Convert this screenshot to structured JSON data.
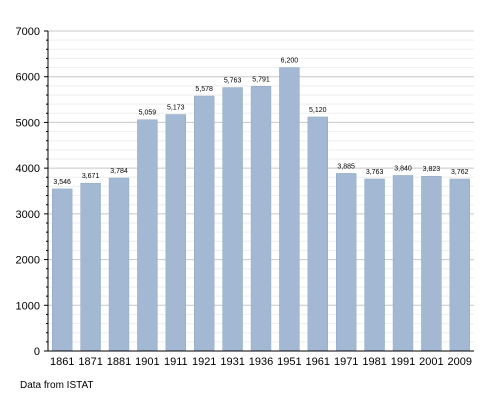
{
  "source_note": "Data from ISTAT",
  "colors": {
    "bar": "#a3b9d3",
    "bar_edge": "#8ea7c4",
    "grid_major": "#c8c8c8",
    "grid_minor": "#eeeeee",
    "axis": "#000000"
  },
  "chart_data": {
    "type": "bar",
    "categories": [
      "1861",
      "1871",
      "1881",
      "1901",
      "1911",
      "1921",
      "1931",
      "1936",
      "1951",
      "1961",
      "1971",
      "1981",
      "1991",
      "2001",
      "2009"
    ],
    "values": [
      3546,
      3671,
      3784,
      5059,
      5173,
      5578,
      5763,
      5791,
      6200,
      5120,
      3885,
      3763,
      3840,
      3823,
      3762
    ],
    "value_labels": [
      "3,546",
      "3,671",
      "3,784",
      "5,059",
      "5,173",
      "5,578",
      "5,763",
      "5,791",
      "6,200",
      "5,120",
      "3,885",
      "3,763",
      "3,840",
      "3,823",
      "3,762"
    ],
    "title": "",
    "xlabel": "",
    "ylabel": "",
    "ylim": [
      0,
      7000
    ],
    "yticks": [
      0,
      1000,
      2000,
      3000,
      4000,
      5000,
      6000,
      7000
    ],
    "grid": true,
    "legend": "none"
  }
}
